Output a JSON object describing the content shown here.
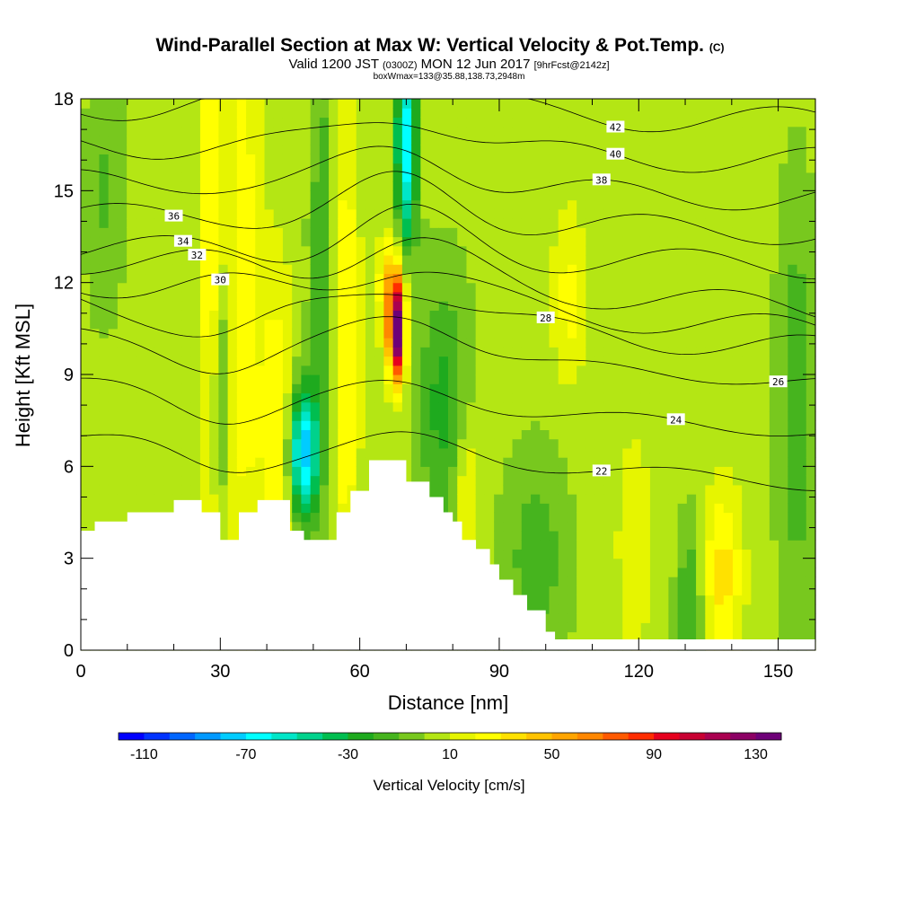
{
  "chart_data": {
    "type": "heatmap",
    "title": "Wind-Parallel Section at Max W: Vertical Velocity & Pot.Temp.",
    "title_mark": "(C)",
    "subtitle_parts": [
      "Valid 1200 JST",
      "(0300Z)",
      "MON 12 Jun 2017",
      "[9hrFcst@2142z]"
    ],
    "subtitle2": "boxWmax=133@35.88,138.73,2948m",
    "xlabel": "Distance [nm]",
    "ylabel": "Height [Kft MSL]",
    "xlim": [
      0,
      158
    ],
    "ylim": [
      0,
      18
    ],
    "xticks": [
      "0",
      "30",
      "60",
      "90",
      "120",
      "150"
    ],
    "xtick_values": [
      0,
      30,
      60,
      90,
      120,
      150
    ],
    "yticks": [
      "0",
      "3",
      "6",
      "9",
      "12",
      "15",
      "18"
    ],
    "ytick_values": [
      0,
      3,
      6,
      9,
      12,
      15,
      18
    ],
    "colorbar": {
      "title": "Vertical Velocity [cm/s]",
      "labels": [
        "-110",
        "-70",
        "-30",
        "10",
        "50",
        "90",
        "130"
      ],
      "label_values": [
        -110,
        -70,
        -30,
        10,
        50,
        90,
        130
      ],
      "range": [
        -120,
        140
      ],
      "colors": [
        "#0000ff",
        "#0033ff",
        "#0066ff",
        "#0099ff",
        "#00ccff",
        "#00ffff",
        "#00e6c8",
        "#00d28c",
        "#00be50",
        "#1eaa1e",
        "#46b41e",
        "#78c81e",
        "#b4e614",
        "#e6f500",
        "#ffff00",
        "#ffe100",
        "#ffc300",
        "#ffa500",
        "#ff8700",
        "#ff5a00",
        "#ff2d00",
        "#e6001e",
        "#c80032",
        "#aa0050",
        "#8c0064",
        "#6e0078"
      ]
    },
    "field_features": [
      {
        "type": "updraft",
        "x": 68,
        "z": 10.3,
        "peak_cm_s": 133
      },
      {
        "type": "downdraft",
        "x": 48,
        "z": 6.5,
        "peak_cm_s": -80
      },
      {
        "type": "downdraft",
        "x": 70,
        "z": 16,
        "peak_cm_s": -70
      }
    ],
    "terrain": [
      [
        0,
        3.9
      ],
      [
        3,
        4.2
      ],
      [
        10,
        4.5
      ],
      [
        20,
        4.9
      ],
      [
        26,
        4.5
      ],
      [
        30,
        3.6
      ],
      [
        34,
        4.5
      ],
      [
        38,
        4.9
      ],
      [
        45,
        3.9
      ],
      [
        48,
        3.6
      ],
      [
        55,
        4.5
      ],
      [
        58,
        5.2
      ],
      [
        62,
        6.2
      ],
      [
        66,
        6.2
      ],
      [
        70,
        5.5
      ],
      [
        75,
        5.0
      ],
      [
        78,
        4.5
      ],
      [
        80,
        4.2
      ],
      [
        82,
        3.6
      ],
      [
        85,
        3.3
      ],
      [
        88,
        2.8
      ],
      [
        90,
        2.3
      ],
      [
        93,
        1.8
      ],
      [
        96,
        1.3
      ],
      [
        100,
        0.6
      ],
      [
        102,
        0.35
      ],
      [
        120,
        0.35
      ],
      [
        158,
        0.35
      ]
    ],
    "isentropes": [
      {
        "label": "22",
        "z": 6.2
      },
      {
        "label": "24",
        "z": 7.9
      },
      {
        "label": "26",
        "z": 9.5
      },
      {
        "label": "28",
        "z": 10.6
      },
      {
        "label": "30",
        "z": 11.2
      },
      {
        "label": "32",
        "z": 11.9
      },
      {
        "label": "34",
        "z": 12.8
      },
      {
        "label": "36",
        "z": 13.9
      },
      {
        "label": "38",
        "z": 15.0
      },
      {
        "label": "40",
        "z": 16.2
      },
      {
        "label": "42",
        "z": 17.5
      }
    ],
    "legend": "none"
  }
}
